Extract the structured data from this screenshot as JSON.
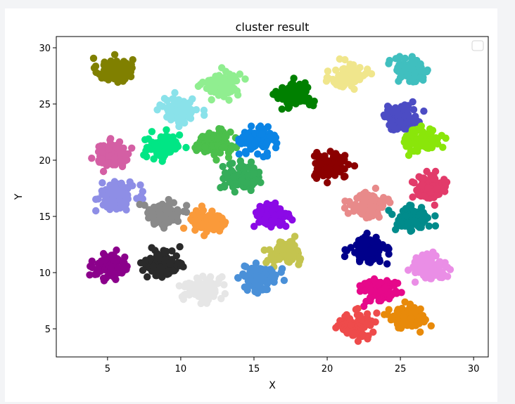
{
  "chart_data": {
    "type": "scatter",
    "title": "cluster result",
    "xlabel": "X",
    "ylabel": "Y",
    "xlim": [
      1.5,
      31.0
    ],
    "ylim": [
      2.5,
      31.0
    ],
    "xticks": [
      5,
      10,
      15,
      20,
      25,
      30
    ],
    "yticks": [
      5,
      10,
      15,
      20,
      25,
      30
    ],
    "grid": false,
    "legend": {
      "placement": "top-right",
      "entries": []
    },
    "clusters": [
      {
        "center": [
          5.5,
          28.0
        ],
        "color": "#808000"
      },
      {
        "center": [
          12.8,
          26.8
        ],
        "color": "#90ee90"
      },
      {
        "center": [
          17.8,
          25.8
        ],
        "color": "#008000"
      },
      {
        "center": [
          21.5,
          27.5
        ],
        "color": "#f0e68c"
      },
      {
        "center": [
          25.8,
          28.0
        ],
        "color": "#40bfbf"
      },
      {
        "center": [
          10.0,
          24.5
        ],
        "color": "#8ae2ea"
      },
      {
        "center": [
          25.0,
          23.8
        ],
        "color": "#4c4cc4"
      },
      {
        "center": [
          26.5,
          21.8
        ],
        "color": "#8ae60a"
      },
      {
        "center": [
          5.3,
          20.5
        ],
        "color": "#d45fa4"
      },
      {
        "center": [
          8.8,
          21.2
        ],
        "color": "#00e685"
      },
      {
        "center": [
          12.2,
          21.5
        ],
        "color": "#4bbf4b"
      },
      {
        "center": [
          15.3,
          21.8
        ],
        "color": "#0b84e5"
      },
      {
        "center": [
          14.2,
          18.5
        ],
        "color": "#35ad5a"
      },
      {
        "center": [
          20.3,
          19.5
        ],
        "color": "#8b0000"
      },
      {
        "center": [
          27.0,
          17.5
        ],
        "color": "#e23b6a"
      },
      {
        "center": [
          5.8,
          17.0
        ],
        "color": "#8e8ee6"
      },
      {
        "center": [
          22.8,
          16.0
        ],
        "color": "#e88a8a"
      },
      {
        "center": [
          8.8,
          15.2
        ],
        "color": "#8a8a8a"
      },
      {
        "center": [
          11.8,
          14.5
        ],
        "color": "#fa9a3a"
      },
      {
        "center": [
          16.2,
          15.0
        ],
        "color": "#8b0ae6"
      },
      {
        "center": [
          25.8,
          14.8
        ],
        "color": "#008b8b"
      },
      {
        "center": [
          17.2,
          11.8
        ],
        "color": "#c4c44f"
      },
      {
        "center": [
          22.8,
          12.0
        ],
        "color": "#00008b"
      },
      {
        "center": [
          5.3,
          10.5
        ],
        "color": "#8b008b"
      },
      {
        "center": [
          8.8,
          10.8
        ],
        "color": "#2a2a2a"
      },
      {
        "center": [
          26.8,
          10.5
        ],
        "color": "#ea8ee6"
      },
      {
        "center": [
          15.5,
          9.5
        ],
        "color": "#4a90d8"
      },
      {
        "center": [
          11.5,
          8.5
        ],
        "color": "#e6e6e6"
      },
      {
        "center": [
          23.5,
          8.5
        ],
        "color": "#e6088a"
      },
      {
        "center": [
          22.0,
          5.3
        ],
        "color": "#ee4b4b"
      },
      {
        "center": [
          25.5,
          6.0
        ],
        "color": "#e88a0a"
      }
    ]
  }
}
